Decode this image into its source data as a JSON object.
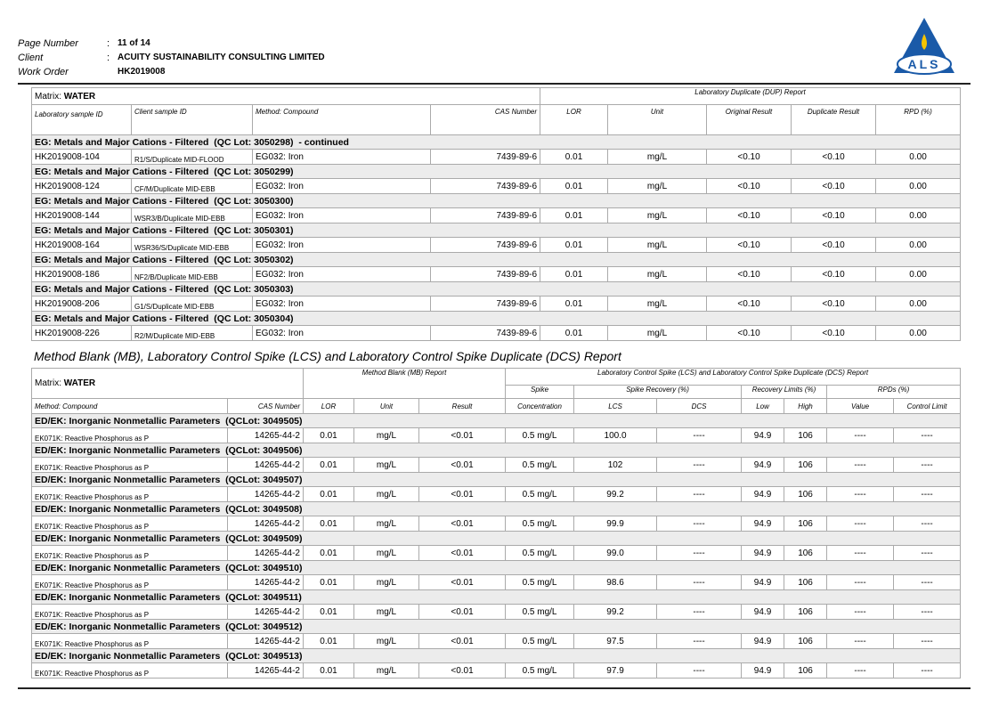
{
  "header": {
    "fields": [
      {
        "label": "Page Number",
        "sep": ":",
        "value": "11 of 14"
      },
      {
        "label": "Client",
        "sep": ":",
        "value": "ACUITY SUSTAINABILITY CONSULTING LIMITED"
      },
      {
        "label": "Work Order",
        "value": "HK2019008"
      }
    ],
    "logo": "ALS"
  },
  "dup_report": {
    "matrix_label": "Matrix:",
    "matrix": "WATER",
    "title": "Laboratory Duplicate (DUP) Report",
    "columns": [
      "Laboratory sample ID",
      "Client sample ID",
      "Method: Compound",
      "CAS Number",
      "LOR",
      "Unit",
      "Original Result",
      "Duplicate Result",
      "RPD (%)"
    ],
    "groups": [
      {
        "heading": "EG: Metals and Major Cations - Filtered  (QC Lot: 3050298)  - continued",
        "rows": [
          [
            "HK2019008-104",
            "R1/S/Duplicate MID-FLOOD",
            "EG032: Iron",
            "7439-89-6",
            "0.01",
            "mg/L",
            "<0.10",
            "<0.10",
            "0.00"
          ]
        ]
      },
      {
        "heading": "EG: Metals and Major Cations - Filtered  (QC Lot: 3050299)",
        "rows": [
          [
            "HK2019008-124",
            "CF/M/Duplicate MID-EBB",
            "EG032: Iron",
            "7439-89-6",
            "0.01",
            "mg/L",
            "<0.10",
            "<0.10",
            "0.00"
          ]
        ]
      },
      {
        "heading": "EG: Metals and Major Cations - Filtered  (QC Lot: 3050300)",
        "rows": [
          [
            "HK2019008-144",
            "WSR3/B/Duplicate MID-EBB",
            "EG032: Iron",
            "7439-89-6",
            "0.01",
            "mg/L",
            "<0.10",
            "<0.10",
            "0.00"
          ]
        ]
      },
      {
        "heading": "EG: Metals and Major Cations - Filtered  (QC Lot: 3050301)",
        "rows": [
          [
            "HK2019008-164",
            "WSR36/S/Duplicate MID-EBB",
            "EG032: Iron",
            "7439-89-6",
            "0.01",
            "mg/L",
            "<0.10",
            "<0.10",
            "0.00"
          ]
        ]
      },
      {
        "heading": "EG: Metals and Major Cations - Filtered  (QC Lot: 3050302)",
        "rows": [
          [
            "HK2019008-186",
            "NF2/B/Duplicate MID-EBB",
            "EG032: Iron",
            "7439-89-6",
            "0.01",
            "mg/L",
            "<0.10",
            "<0.10",
            "0.00"
          ]
        ]
      },
      {
        "heading": "EG: Metals and Major Cations - Filtered  (QC Lot: 3050303)",
        "rows": [
          [
            "HK2019008-206",
            "G1/S/Duplicate MID-EBB",
            "EG032: Iron",
            "7439-89-6",
            "0.01",
            "mg/L",
            "<0.10",
            "<0.10",
            "0.00"
          ]
        ]
      },
      {
        "heading": "EG: Metals and Major Cations - Filtered  (QC Lot: 3050304)",
        "rows": [
          [
            "HK2019008-226",
            "R2/M/Duplicate MID-EBB",
            "EG032: Iron",
            "7439-89-6",
            "0.01",
            "mg/L",
            "<0.10",
            "<0.10",
            "0.00"
          ]
        ]
      }
    ]
  },
  "section_title": "Method Blank (MB), Laboratory Control Spike (LCS) and Laboratory Control Spike Duplicate (DCS) Report",
  "mb_report": {
    "matrix_label": "Matrix:",
    "matrix": "WATER",
    "mb_title": "Method Blank (MB) Report",
    "lcs_title": "Laboratory Control Spike (LCS) and Laboratory Control Spike Duplicate (DCS) Report",
    "group_headers": [
      "Spike",
      "Spike Recovery (%)",
      "Recovery Limits (%)",
      "RPDs (%)"
    ],
    "columns": [
      "Method: Compound",
      "CAS Number",
      "LOR",
      "Unit",
      "Result",
      "Concentration",
      "LCS",
      "DCS",
      "Low",
      "High",
      "Value",
      "Control Limit"
    ],
    "groups": [
      {
        "heading": "ED/EK: Inorganic Nonmetallic Parameters  (QCLot: 3049505)",
        "rows": [
          [
            "EK071K: Reactive Phosphorus as P",
            "14265-44-2",
            "0.01",
            "mg/L",
            "<0.01",
            "0.5 mg/L",
            "100.0",
            "----",
            "94.9",
            "106",
            "----",
            "----"
          ]
        ]
      },
      {
        "heading": "ED/EK: Inorganic Nonmetallic Parameters  (QCLot: 3049506)",
        "rows": [
          [
            "EK071K: Reactive Phosphorus as P",
            "14265-44-2",
            "0.01",
            "mg/L",
            "<0.01",
            "0.5 mg/L",
            "102",
            "----",
            "94.9",
            "106",
            "----",
            "----"
          ]
        ]
      },
      {
        "heading": "ED/EK: Inorganic Nonmetallic Parameters  (QCLot: 3049507)",
        "rows": [
          [
            "EK071K: Reactive Phosphorus as P",
            "14265-44-2",
            "0.01",
            "mg/L",
            "<0.01",
            "0.5 mg/L",
            "99.2",
            "----",
            "94.9",
            "106",
            "----",
            "----"
          ]
        ]
      },
      {
        "heading": "ED/EK: Inorganic Nonmetallic Parameters  (QCLot: 3049508)",
        "rows": [
          [
            "EK071K: Reactive Phosphorus as P",
            "14265-44-2",
            "0.01",
            "mg/L",
            "<0.01",
            "0.5 mg/L",
            "99.9",
            "----",
            "94.9",
            "106",
            "----",
            "----"
          ]
        ]
      },
      {
        "heading": "ED/EK: Inorganic Nonmetallic Parameters  (QCLot: 3049509)",
        "rows": [
          [
            "EK071K: Reactive Phosphorus as P",
            "14265-44-2",
            "0.01",
            "mg/L",
            "<0.01",
            "0.5 mg/L",
            "99.0",
            "----",
            "94.9",
            "106",
            "----",
            "----"
          ]
        ]
      },
      {
        "heading": "ED/EK: Inorganic Nonmetallic Parameters  (QCLot: 3049510)",
        "rows": [
          [
            "EK071K: Reactive Phosphorus as P",
            "14265-44-2",
            "0.01",
            "mg/L",
            "<0.01",
            "0.5 mg/L",
            "98.6",
            "----",
            "94.9",
            "106",
            "----",
            "----"
          ]
        ]
      },
      {
        "heading": "ED/EK: Inorganic Nonmetallic Parameters  (QCLot: 3049511)",
        "rows": [
          [
            "EK071K: Reactive Phosphorus as P",
            "14265-44-2",
            "0.01",
            "mg/L",
            "<0.01",
            "0.5 mg/L",
            "99.2",
            "----",
            "94.9",
            "106",
            "----",
            "----"
          ]
        ]
      },
      {
        "heading": "ED/EK: Inorganic Nonmetallic Parameters  (QCLot: 3049512)",
        "rows": [
          [
            "EK071K: Reactive Phosphorus as P",
            "14265-44-2",
            "0.01",
            "mg/L",
            "<0.01",
            "0.5 mg/L",
            "97.5",
            "----",
            "94.9",
            "106",
            "----",
            "----"
          ]
        ]
      },
      {
        "heading": "ED/EK: Inorganic Nonmetallic Parameters  (QCLot: 3049513)",
        "rows": [
          [
            "EK071K: Reactive Phosphorus as P",
            "14265-44-2",
            "0.01",
            "mg/L",
            "<0.01",
            "0.5 mg/L",
            "97.9",
            "----",
            "94.9",
            "106",
            "----",
            "----"
          ]
        ]
      }
    ]
  }
}
